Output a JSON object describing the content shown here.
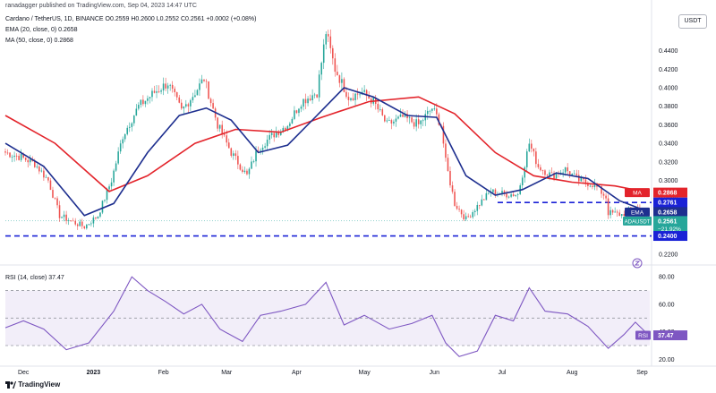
{
  "publisher": "ranadagger published on TradingView.com, Sep 04, 2023 14:47 UTC",
  "legend": {
    "symbol": "Cardano / TetherUS, 1D, BINANCE",
    "ohlc": "O0.2559 H0.2600 L0.2552 C0.2561 +0.0002 (+0.08%)",
    "ema_label": "EMA (20, close, 0)",
    "ema_value": "0.2658",
    "ma_label": "MA (50, close, 0)",
    "ma_value": "0.2868",
    "rsi_label": "RSI (14, close)",
    "rsi_value": "37.47"
  },
  "currency": "USDT",
  "logo_text": "TradingView",
  "colors": {
    "up": "#26a69a",
    "down": "#ef5350",
    "ema": "#1e2f8f",
    "ma": "#e3242b",
    "level": "#1a22d6",
    "rsi": "#7e57c2",
    "rsi_band": "#ede7f6",
    "price_tag": "#26a69a"
  },
  "chart_data": [
    {
      "type": "candlestick",
      "title": "Cardano / TetherUS, 1D, BINANCE",
      "y_ticks": [
        "0.4400",
        "0.4200",
        "0.4000",
        "0.3800",
        "0.3600",
        "0.3400",
        "0.3200",
        "0.3000",
        "0.2800",
        "0.2600",
        "0.2400",
        "0.2200"
      ],
      "x_ticks": [
        "Dec",
        "2023",
        "Feb",
        "Mar",
        "Apr",
        "May",
        "Jun",
        "Jul",
        "Aug",
        "Sep"
      ],
      "y_tick_values": [
        0.44,
        0.42,
        0.4,
        0.38,
        0.36,
        0.34,
        0.32,
        0.3,
        0.28,
        0.26,
        0.24,
        0.22
      ],
      "ylim": [
        0.2125,
        0.4715
      ],
      "horizontal_levels": [
        {
          "value": 0.2761,
          "label": "0.2761",
          "style": "dashed"
        },
        {
          "value": 0.24,
          "label": "0.2400",
          "style": "dashed"
        }
      ],
      "price_labels": [
        {
          "name": "MA",
          "value": "0.2868"
        },
        {
          "name": "EMA",
          "value": "0.2658"
        },
        {
          "name": "ADAUSDT",
          "value": "0.2561",
          "change": "−21.92%",
          "countdown": "09:12:42"
        }
      ],
      "price_path_anchors": [
        {
          "date": "2022-11-23",
          "close": 0.33
        },
        {
          "date": "2022-11-30",
          "close": 0.325
        },
        {
          "date": "2022-12-06",
          "close": 0.318
        },
        {
          "date": "2022-12-12",
          "close": 0.3
        },
        {
          "date": "2022-12-17",
          "close": 0.262
        },
        {
          "date": "2022-12-23",
          "close": 0.255
        },
        {
          "date": "2022-12-28",
          "close": 0.25
        },
        {
          "date": "2023-01-03",
          "close": 0.262
        },
        {
          "date": "2023-01-09",
          "close": 0.3
        },
        {
          "date": "2023-01-14",
          "close": 0.348
        },
        {
          "date": "2023-01-21",
          "close": 0.38
        },
        {
          "date": "2023-01-28",
          "close": 0.395
        },
        {
          "date": "2023-02-03",
          "close": 0.405
        },
        {
          "date": "2023-02-09",
          "close": 0.375
        },
        {
          "date": "2023-02-15",
          "close": 0.395
        },
        {
          "date": "2023-02-19",
          "close": 0.41
        },
        {
          "date": "2023-02-25",
          "close": 0.36
        },
        {
          "date": "2023-03-03",
          "close": 0.33
        },
        {
          "date": "2023-03-10",
          "close": 0.305
        },
        {
          "date": "2023-03-15",
          "close": 0.335
        },
        {
          "date": "2023-03-22",
          "close": 0.35
        },
        {
          "date": "2023-03-28",
          "close": 0.36
        },
        {
          "date": "2023-04-03",
          "close": 0.385
        },
        {
          "date": "2023-04-10",
          "close": 0.395
        },
        {
          "date": "2023-04-14",
          "close": 0.46
        },
        {
          "date": "2023-04-18",
          "close": 0.42
        },
        {
          "date": "2023-04-24",
          "close": 0.39
        },
        {
          "date": "2023-04-30",
          "close": 0.395
        },
        {
          "date": "2023-05-05",
          "close": 0.385
        },
        {
          "date": "2023-05-11",
          "close": 0.36
        },
        {
          "date": "2023-05-18",
          "close": 0.368
        },
        {
          "date": "2023-05-25",
          "close": 0.36
        },
        {
          "date": "2023-05-31",
          "close": 0.378
        },
        {
          "date": "2023-06-04",
          "close": 0.36
        },
        {
          "date": "2023-06-06",
          "close": 0.32
        },
        {
          "date": "2023-06-10",
          "close": 0.275
        },
        {
          "date": "2023-06-15",
          "close": 0.258
        },
        {
          "date": "2023-06-21",
          "close": 0.275
        },
        {
          "date": "2023-06-26",
          "close": 0.288
        },
        {
          "date": "2023-07-02",
          "close": 0.285
        },
        {
          "date": "2023-07-08",
          "close": 0.285
        },
        {
          "date": "2023-07-13",
          "close": 0.34
        },
        {
          "date": "2023-07-17",
          "close": 0.315
        },
        {
          "date": "2023-07-23",
          "close": 0.305
        },
        {
          "date": "2023-07-29",
          "close": 0.312
        },
        {
          "date": "2023-08-04",
          "close": 0.3
        },
        {
          "date": "2023-08-11",
          "close": 0.295
        },
        {
          "date": "2023-08-16",
          "close": 0.282
        },
        {
          "date": "2023-08-17",
          "close": 0.265
        },
        {
          "date": "2023-08-23",
          "close": 0.263
        },
        {
          "date": "2023-08-29",
          "close": 0.272
        },
        {
          "date": "2023-09-04",
          "close": 0.2561
        }
      ],
      "ema_20_path": [
        {
          "date": "2022-11-23",
          "value": 0.34
        },
        {
          "date": "2022-12-10",
          "value": 0.315
        },
        {
          "date": "2022-12-28",
          "value": 0.262
        },
        {
          "date": "2023-01-10",
          "value": 0.275
        },
        {
          "date": "2023-01-25",
          "value": 0.33
        },
        {
          "date": "2023-02-08",
          "value": 0.37
        },
        {
          "date": "2023-02-20",
          "value": 0.378
        },
        {
          "date": "2023-03-03",
          "value": 0.365
        },
        {
          "date": "2023-03-15",
          "value": 0.33
        },
        {
          "date": "2023-03-28",
          "value": 0.338
        },
        {
          "date": "2023-04-10",
          "value": 0.37
        },
        {
          "date": "2023-04-22",
          "value": 0.4
        },
        {
          "date": "2023-05-05",
          "value": 0.39
        },
        {
          "date": "2023-05-20",
          "value": 0.37
        },
        {
          "date": "2023-06-02",
          "value": 0.368
        },
        {
          "date": "2023-06-15",
          "value": 0.305
        },
        {
          "date": "2023-06-28",
          "value": 0.284
        },
        {
          "date": "2023-07-10",
          "value": 0.29
        },
        {
          "date": "2023-07-25",
          "value": 0.308
        },
        {
          "date": "2023-08-08",
          "value": 0.302
        },
        {
          "date": "2023-08-22",
          "value": 0.278
        },
        {
          "date": "2023-09-04",
          "value": 0.2658
        }
      ],
      "ma_50_path": [
        {
          "date": "2022-11-23",
          "value": 0.37
        },
        {
          "date": "2022-12-15",
          "value": 0.34
        },
        {
          "date": "2023-01-08",
          "value": 0.288
        },
        {
          "date": "2023-01-25",
          "value": 0.305
        },
        {
          "date": "2023-02-15",
          "value": 0.34
        },
        {
          "date": "2023-03-05",
          "value": 0.355
        },
        {
          "date": "2023-03-25",
          "value": 0.352
        },
        {
          "date": "2023-04-12",
          "value": 0.368
        },
        {
          "date": "2023-05-03",
          "value": 0.385
        },
        {
          "date": "2023-05-25",
          "value": 0.39
        },
        {
          "date": "2023-06-10",
          "value": 0.372
        },
        {
          "date": "2023-06-28",
          "value": 0.33
        },
        {
          "date": "2023-07-15",
          "value": 0.305
        },
        {
          "date": "2023-08-01",
          "value": 0.298
        },
        {
          "date": "2023-08-20",
          "value": 0.294
        },
        {
          "date": "2023-09-04",
          "value": 0.2868
        }
      ]
    },
    {
      "type": "line",
      "title": "RSI (14, close)",
      "y_ticks": [
        "80.00",
        "60.00",
        "40.00",
        "20.00"
      ],
      "y_tick_values": [
        80,
        60,
        40,
        20
      ],
      "ylim": [
        17,
        86
      ],
      "band": [
        30,
        70
      ],
      "midline": 50,
      "current": "37.47",
      "rsi_path": [
        {
          "date": "2022-11-23",
          "value": 43
        },
        {
          "date": "2022-12-01",
          "value": 48
        },
        {
          "date": "2022-12-10",
          "value": 42
        },
        {
          "date": "2022-12-20",
          "value": 27
        },
        {
          "date": "2022-12-30",
          "value": 32
        },
        {
          "date": "2023-01-10",
          "value": 55
        },
        {
          "date": "2023-01-18",
          "value": 80
        },
        {
          "date": "2023-01-25",
          "value": 70
        },
        {
          "date": "2023-02-02",
          "value": 62
        },
        {
          "date": "2023-02-10",
          "value": 53
        },
        {
          "date": "2023-02-18",
          "value": 60
        },
        {
          "date": "2023-02-26",
          "value": 42
        },
        {
          "date": "2023-03-08",
          "value": 33
        },
        {
          "date": "2023-03-16",
          "value": 52
        },
        {
          "date": "2023-03-25",
          "value": 55
        },
        {
          "date": "2023-04-05",
          "value": 60
        },
        {
          "date": "2023-04-14",
          "value": 76
        },
        {
          "date": "2023-04-22",
          "value": 45
        },
        {
          "date": "2023-05-01",
          "value": 52
        },
        {
          "date": "2023-05-12",
          "value": 42
        },
        {
          "date": "2023-05-22",
          "value": 46
        },
        {
          "date": "2023-05-31",
          "value": 52
        },
        {
          "date": "2023-06-06",
          "value": 32
        },
        {
          "date": "2023-06-12",
          "value": 22
        },
        {
          "date": "2023-06-20",
          "value": 26
        },
        {
          "date": "2023-06-28",
          "value": 52
        },
        {
          "date": "2023-07-06",
          "value": 48
        },
        {
          "date": "2023-07-13",
          "value": 72
        },
        {
          "date": "2023-07-20",
          "value": 55
        },
        {
          "date": "2023-07-30",
          "value": 53
        },
        {
          "date": "2023-08-08",
          "value": 44
        },
        {
          "date": "2023-08-17",
          "value": 28
        },
        {
          "date": "2023-08-24",
          "value": 38
        },
        {
          "date": "2023-08-29",
          "value": 47
        },
        {
          "date": "2023-09-04",
          "value": 37.47
        }
      ]
    }
  ]
}
